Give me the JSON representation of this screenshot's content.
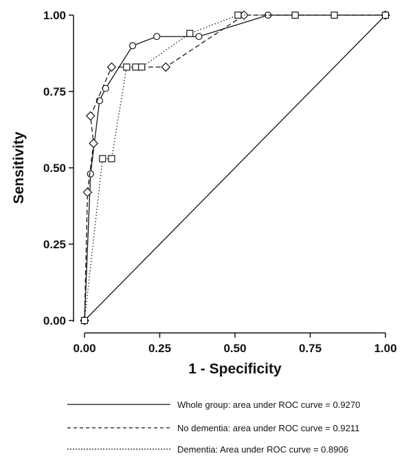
{
  "chart_data": {
    "type": "line",
    "xlabel": "1 - Specificity",
    "ylabel": "Sensitivity",
    "xlim": [
      0,
      1
    ],
    "ylim": [
      0,
      1
    ],
    "x_ticks": [
      "0.00",
      "0.25",
      "0.50",
      "0.75",
      "1.00"
    ],
    "y_ticks": [
      "0.00",
      "0.25",
      "0.50",
      "0.75",
      "1.00"
    ],
    "grid": false,
    "legend_position": "bottom",
    "reference_line": {
      "x": [
        0,
        1
      ],
      "y": [
        0,
        1
      ]
    },
    "series": [
      {
        "name": "Whole group: area under ROC curve = 0.9270",
        "dash": "solid",
        "marker": "circle",
        "x": [
          0,
          0.02,
          0.05,
          0.07,
          0.16,
          0.24,
          0.38,
          0.61,
          1.0
        ],
        "y": [
          0,
          0.48,
          0.72,
          0.76,
          0.9,
          0.93,
          0.93,
          1.0,
          1.0
        ]
      },
      {
        "name": "No dementia: area under ROC curve = 0.9211",
        "dash": "dashed",
        "marker": "diamond",
        "x": [
          0,
          0.01,
          0.03,
          0.02,
          0.09,
          0.27,
          0.53,
          1.0
        ],
        "y": [
          0,
          0.42,
          0.58,
          0.67,
          0.83,
          0.83,
          1.0,
          1.0
        ]
      },
      {
        "name": "Dementia: Area under ROC curve = 0.8906",
        "dash": "dotted",
        "marker": "square",
        "x": [
          0,
          0.06,
          0.09,
          0.14,
          0.17,
          0.19,
          0.35,
          0.51,
          0.7,
          0.83,
          1.0
        ],
        "y": [
          0,
          0.53,
          0.53,
          0.83,
          0.83,
          0.83,
          0.94,
          1.0,
          1.0,
          1.0,
          1.0
        ]
      }
    ],
    "legend": [
      "Whole group: area under ROC curve = 0.9270",
      "No dementia: area under ROC curve = 0.9211",
      "Dementia: Area under ROC curve = 0.8906"
    ]
  }
}
